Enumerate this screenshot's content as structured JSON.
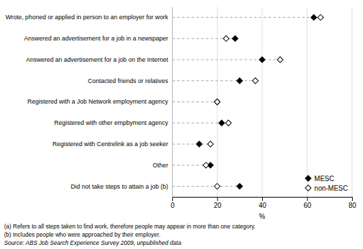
{
  "chart_data": {
    "type": "dot",
    "orientation": "horizontal",
    "categories": [
      "Wrote, phoned or applied in person to an employer for work",
      "Answered an advertisement for a job in a newspaper",
      "Answered an advertisement for a job on the Internet",
      "Contacted friends or relatives",
      "Registered with a Job Network employment agency",
      "Registered with other empbyment agency",
      "Registered with Centrelink as a job seeker",
      "Other",
      "Did not take steps to attain a job (b)"
    ],
    "series": [
      {
        "name": "MESC",
        "color": "#000000",
        "values": [
          63,
          28,
          40,
          30,
          20,
          22,
          12,
          17,
          30
        ]
      },
      {
        "name": "non-MESC",
        "color": "#ffffff",
        "values": [
          66,
          24,
          48,
          37,
          20,
          25,
          17,
          15,
          20
        ]
      }
    ],
    "marker": "diamond",
    "xlabel": "%",
    "xlim": [
      0,
      80
    ],
    "xticks": [
      0,
      20,
      40,
      60,
      80
    ],
    "grid": true,
    "legend": "lower right",
    "annotations": [
      "(a)  Refers to all steps taken to find work, therefore people may appear in more than one category.",
      "(b)  Includes people who were approached by their employer."
    ],
    "source": "Source: ABS Job Search Experience Survey 2009, unpublished data"
  }
}
